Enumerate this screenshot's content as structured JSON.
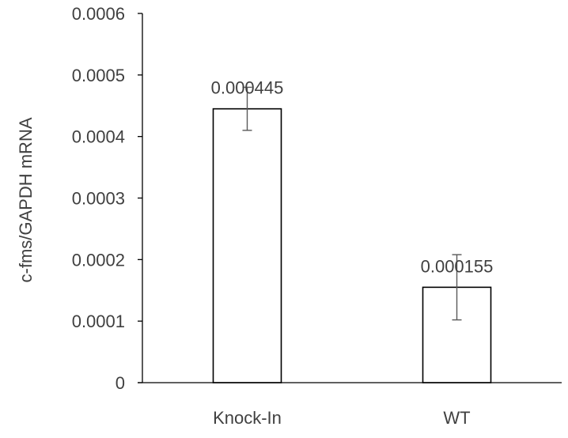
{
  "chart_data": {
    "type": "bar",
    "title": "",
    "xlabel": "",
    "ylabel": "c-fms/GAPDH mRNA",
    "categories": [
      "Knock-In",
      "WT"
    ],
    "values": [
      0.000445,
      0.000155
    ],
    "error_low": [
      0.00041,
      0.000102
    ],
    "error_high": [
      0.00048,
      0.000208
    ],
    "data_labels": [
      "0.000445",
      "0.000155"
    ],
    "ylim": [
      0,
      0.0006
    ],
    "yticks": [
      0,
      0.0001,
      0.0002,
      0.0003,
      0.0004,
      0.0005,
      0.0006
    ],
    "ytick_labels": [
      "0",
      "0.0001",
      "0.0002",
      "0.0003",
      "0.0004",
      "0.0005",
      "0.0006"
    ],
    "grid": false,
    "legend": "none",
    "colors": {
      "bar_fill": "#ffffff",
      "bar_stroke": "#000000",
      "axis": "#000000",
      "error_bar": "#595959",
      "text": "#404040"
    }
  }
}
